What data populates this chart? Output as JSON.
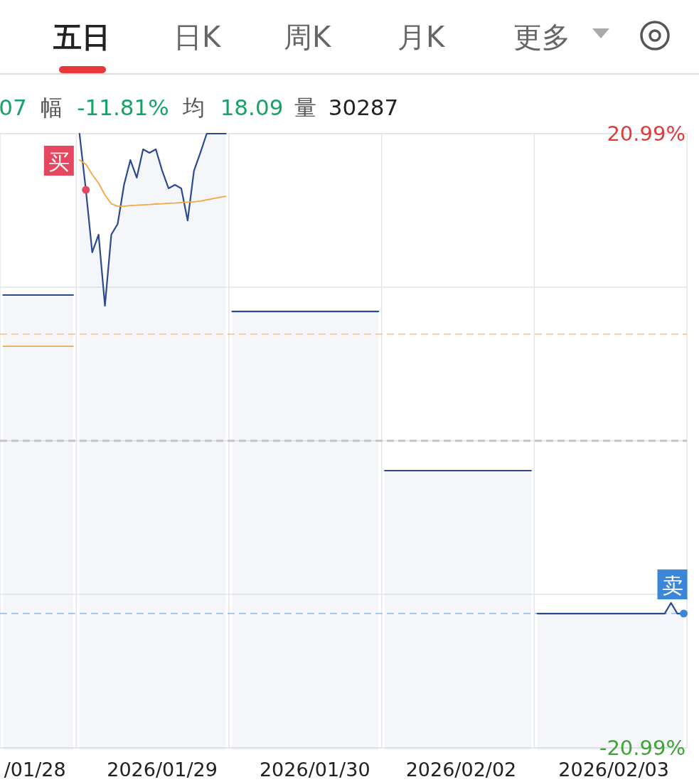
{
  "chart_data": {
    "type": "area",
    "categories": [
      null,
      null,
      null,
      null,
      null,
      "/01/28",
      null,
      null,
      null,
      null,
      null,
      null,
      null,
      null,
      null,
      null,
      null,
      null,
      null,
      null,
      null,
      null,
      null,
      null,
      null,
      "2026/01/29",
      null,
      null,
      null,
      null,
      null,
      null,
      null,
      null,
      null,
      null,
      null,
      null,
      null,
      null,
      null,
      null,
      null,
      null,
      null,
      null,
      null,
      null,
      null,
      "2026/01/30",
      null,
      null,
      null,
      null,
      null,
      null,
      null,
      null,
      null,
      null,
      null,
      null,
      null,
      null,
      null,
      null,
      null,
      null,
      null,
      null,
      null,
      null,
      "2026/02/02",
      null,
      null,
      null,
      null,
      null,
      null,
      null,
      null,
      null,
      null,
      null,
      null,
      null,
      null,
      null,
      null,
      null,
      null,
      null,
      null,
      null,
      null,
      null,
      "2026/02/03",
      null,
      null,
      null,
      null,
      null,
      null,
      null,
      null,
      null,
      null,
      null
    ],
    "ylim": [
      -20.99,
      20.99
    ],
    "yticks": [
      {
        "value": -20.99,
        "label": "-20.99%"
      },
      {
        "value": -10.495,
        "label": null
      },
      {
        "value": 0,
        "label": null
      },
      {
        "value": 10.495,
        "label": null
      },
      {
        "value": 20.99,
        "label": "20.99%"
      }
    ],
    "grid": "y",
    "series": [
      {
        "color": "#2b4a90",
        "values": [
          9.96,
          9.96,
          9.96,
          9.96,
          9.96,
          9.96,
          9.96,
          9.96,
          9.96,
          9.96,
          9.96,
          9.96,
          null,
          null,
          null,
          null,
          null,
          null,
          null,
          null,
          null,
          null,
          null,
          null,
          null,
          null,
          null,
          null,
          null,
          null,
          null,
          null,
          null,
          null,
          null,
          null,
          null,
          null,
          null,
          null,
          null,
          null,
          null,
          null,
          null,
          null,
          null,
          null,
          null,
          null,
          null,
          null,
          null,
          null,
          null,
          null,
          null,
          null,
          null,
          null,
          null,
          null,
          null,
          null,
          null,
          null,
          null,
          null,
          null,
          null,
          null,
          null,
          null,
          null,
          null,
          null,
          null,
          null,
          null,
          null,
          null,
          null,
          null,
          null,
          null,
          null,
          null,
          null,
          null,
          null,
          null,
          null,
          null,
          null,
          null,
          null,
          null,
          null,
          null,
          null,
          null,
          null,
          null,
          null,
          null,
          null,
          null,
          null
        ]
      },
      {
        "color": "#2b4a90",
        "values": [
          null,
          null,
          null,
          null,
          null,
          null,
          null,
          null,
          null,
          null,
          null,
          null,
          20.99,
          17.15,
          12.88,
          14.09,
          9.23,
          14.09,
          14.82,
          17.49,
          19.19,
          17.98,
          19.92,
          19.68,
          19.92,
          18.46,
          17.25,
          17.49,
          17.25,
          15.06,
          18.46,
          19.68,
          20.99,
          20.99,
          20.99,
          20.99,
          null,
          null,
          null,
          null,
          null,
          null,
          null,
          null,
          null,
          null,
          null,
          null,
          null,
          null,
          null,
          null,
          null,
          null,
          null,
          null,
          null,
          null,
          null,
          null,
          null,
          null,
          null,
          null,
          null,
          null,
          null,
          null,
          null,
          null,
          null,
          null,
          null,
          null,
          null,
          null,
          null,
          null,
          null,
          null,
          null,
          null,
          null,
          null,
          null,
          null,
          null,
          null,
          null,
          null,
          null,
          null,
          null,
          null,
          null,
          null,
          null,
          null,
          null,
          null,
          null,
          null,
          null,
          null,
          null,
          null,
          null,
          null
        ]
      },
      {
        "color": "#2b4a90",
        "values": [
          null,
          null,
          null,
          null,
          null,
          null,
          null,
          null,
          null,
          null,
          null,
          null,
          null,
          null,
          null,
          null,
          null,
          null,
          null,
          null,
          null,
          null,
          null,
          null,
          null,
          null,
          null,
          null,
          null,
          null,
          null,
          null,
          null,
          null,
          null,
          null,
          8.84,
          8.84,
          8.84,
          8.84,
          8.84,
          8.84,
          8.84,
          8.84,
          8.84,
          8.84,
          8.84,
          8.84,
          8.84,
          8.84,
          8.84,
          8.84,
          8.84,
          8.84,
          8.84,
          8.84,
          8.84,
          8.84,
          8.84,
          8.84,
          null,
          null,
          null,
          null,
          null,
          null,
          null,
          null,
          null,
          null,
          null,
          null,
          null,
          null,
          null,
          null,
          null,
          null,
          null,
          null,
          null,
          null,
          null,
          null,
          null,
          null,
          null,
          null,
          null,
          null,
          null,
          null,
          null,
          null,
          null,
          null,
          null,
          null,
          null,
          null,
          null,
          null,
          null,
          null,
          null,
          null,
          null,
          null
        ]
      },
      {
        "color": "#2b4a90",
        "values": [
          null,
          null,
          null,
          null,
          null,
          null,
          null,
          null,
          null,
          null,
          null,
          null,
          null,
          null,
          null,
          null,
          null,
          null,
          null,
          null,
          null,
          null,
          null,
          null,
          null,
          null,
          null,
          null,
          null,
          null,
          null,
          null,
          null,
          null,
          null,
          null,
          null,
          null,
          null,
          null,
          null,
          null,
          null,
          null,
          null,
          null,
          null,
          null,
          null,
          null,
          null,
          null,
          null,
          null,
          null,
          null,
          null,
          null,
          null,
          null,
          -2.04,
          -2.04,
          -2.04,
          -2.04,
          -2.04,
          -2.04,
          -2.04,
          -2.04,
          -2.04,
          -2.04,
          -2.04,
          -2.04,
          -2.04,
          -2.04,
          -2.04,
          -2.04,
          -2.04,
          -2.04,
          -2.04,
          -2.04,
          -2.04,
          -2.04,
          -2.04,
          -2.04,
          null,
          null,
          null,
          null,
          null,
          null,
          null,
          null,
          null,
          null,
          null,
          null,
          null,
          null,
          null,
          null,
          null,
          null,
          null,
          null,
          null,
          null,
          null,
          null
        ]
      },
      {
        "color": "#2b4a90",
        "values": [
          null,
          null,
          null,
          null,
          null,
          null,
          null,
          null,
          null,
          null,
          null,
          null,
          null,
          null,
          null,
          null,
          null,
          null,
          null,
          null,
          null,
          null,
          null,
          null,
          null,
          null,
          null,
          null,
          null,
          null,
          null,
          null,
          null,
          null,
          null,
          null,
          null,
          null,
          null,
          null,
          null,
          null,
          null,
          null,
          null,
          null,
          null,
          null,
          null,
          null,
          null,
          null,
          null,
          null,
          null,
          null,
          null,
          null,
          null,
          null,
          null,
          null,
          null,
          null,
          null,
          null,
          null,
          null,
          null,
          null,
          null,
          null,
          null,
          null,
          null,
          null,
          null,
          null,
          null,
          null,
          null,
          null,
          null,
          null,
          -11.81,
          -11.81,
          -11.81,
          -11.81,
          -11.81,
          -11.81,
          -11.81,
          -11.81,
          -11.81,
          -11.81,
          -11.81,
          -11.81,
          -11.81,
          -11.81,
          -11.81,
          -11.81,
          -11.81,
          -11.81,
          -11.81,
          -11.81,
          -11.81,
          -11.08,
          -11.81,
          -11.81
        ]
      },
      {
        "type": "line",
        "color": "#f5a742",
        "values": [
          6.46,
          6.46,
          6.46,
          6.46,
          6.46,
          6.46,
          6.46,
          6.46,
          6.46,
          6.46,
          6.46,
          6.46,
          null,
          null,
          null,
          null,
          null,
          null,
          null,
          null,
          null,
          null,
          null,
          null,
          null,
          null,
          null,
          null,
          null,
          null,
          null,
          null,
          null,
          null,
          null,
          null,
          null,
          null,
          null,
          null,
          null,
          null,
          null,
          null,
          null,
          null,
          null,
          null,
          null,
          null,
          null,
          null,
          null,
          null,
          null,
          null,
          null,
          null,
          null,
          null,
          null,
          null,
          null,
          null,
          null,
          null,
          null,
          null,
          null,
          null,
          null,
          null,
          null,
          null,
          null,
          null,
          null,
          null,
          null,
          null,
          null,
          null,
          null,
          null,
          null,
          null,
          null,
          null,
          null,
          null,
          null,
          null,
          null,
          null,
          null,
          null,
          null,
          null,
          null,
          null,
          null,
          null,
          null,
          null,
          null,
          null,
          null,
          null
        ]
      },
      {
        "type": "line",
        "color": "#f5a742",
        "values": [
          null,
          null,
          null,
          null,
          null,
          null,
          null,
          null,
          null,
          null,
          null,
          null,
          19.19,
          18.9,
          18.2,
          17.6,
          16.8,
          16.2,
          16.03,
          16.03,
          16.08,
          16.1,
          16.13,
          16.15,
          16.18,
          16.2,
          16.23,
          16.25,
          16.28,
          16.31,
          16.33,
          16.38,
          16.47,
          16.55,
          16.63,
          16.71,
          null,
          null,
          null,
          null,
          null,
          null,
          null,
          null,
          null,
          null,
          null,
          null,
          null,
          null,
          null,
          null,
          null,
          null,
          null,
          null,
          null,
          null,
          null,
          null,
          null,
          null,
          null,
          null,
          null,
          null,
          null,
          null,
          null,
          null,
          null,
          null,
          null,
          null,
          null,
          null,
          null,
          null,
          null,
          null,
          null,
          null,
          null,
          null,
          null,
          null,
          null,
          null,
          null,
          null,
          null,
          null,
          null,
          null,
          null,
          null,
          null,
          null,
          null,
          null,
          null,
          null,
          null,
          null,
          null,
          null,
          null,
          null
        ]
      }
    ],
    "ref_lines": [
      {
        "axis": "y",
        "value": 7.29,
        "color": "#f7c27e",
        "line_style": "dashed"
      },
      {
        "axis": "y",
        "value": 0,
        "color": "#c4c4c4",
        "line_style": "dashed"
      },
      {
        "axis": "y",
        "value": -11.81,
        "color": "#8ab8f0",
        "line_style": "dashed"
      }
    ],
    "annotations": [
      "五日",
      "日K",
      "周K",
      "月K",
      "更多",
      "07",
      "幅",
      "-11.81%",
      "均",
      "18.09",
      "量",
      "30287",
      "买",
      "卖"
    ]
  }
}
